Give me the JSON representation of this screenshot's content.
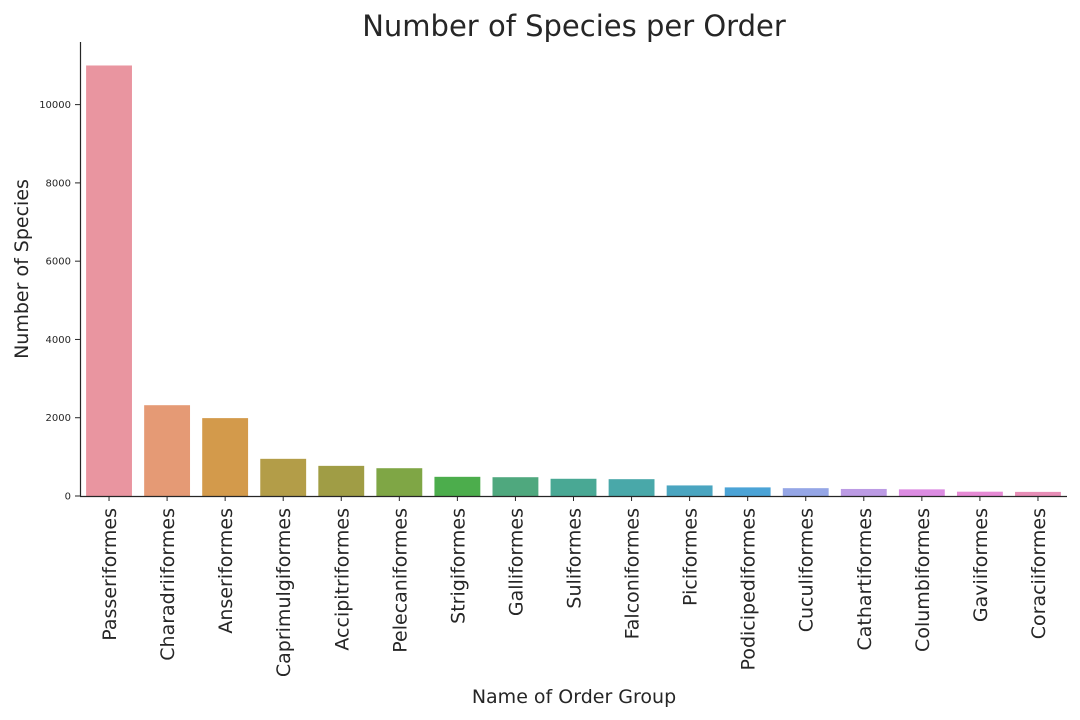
{
  "chart_data": {
    "type": "bar",
    "title": "Number of Species per Order",
    "xlabel": "Name of Order Group",
    "ylabel": "Number of Species",
    "ylim": [
      0,
      11600
    ],
    "yticks": [
      0,
      2000,
      4000,
      6000,
      8000,
      10000
    ],
    "grid": false,
    "legend": "none",
    "categories": [
      "Passeriformes",
      "Charadriiformes",
      "Anseriformes",
      "Caprimulgiformes",
      "Accipitriformes",
      "Pelecaniformes",
      "Strigiformes",
      "Galliformes",
      "Suliformes",
      "Falconiformes",
      "Piciformes",
      "Podicipediformes",
      "Cuculiformes",
      "Cathartiformes",
      "Columbiformes",
      "Gaviiformes",
      "Coraciiformes"
    ],
    "values": [
      11000,
      2320,
      1990,
      950,
      770,
      710,
      490,
      480,
      440,
      430,
      270,
      220,
      200,
      180,
      170,
      110,
      105
    ],
    "colors": [
      "#e995a0",
      "#e59a75",
      "#d39a4b",
      "#b39d48",
      "#a09d45",
      "#7fa645",
      "#4cad4c",
      "#4fa87e",
      "#49a894",
      "#49a8a9",
      "#4aa5c0",
      "#4ba3d6",
      "#95a6e6",
      "#bc9be4",
      "#dc8ce2",
      "#e68ad5",
      "#e78db6"
    ]
  }
}
